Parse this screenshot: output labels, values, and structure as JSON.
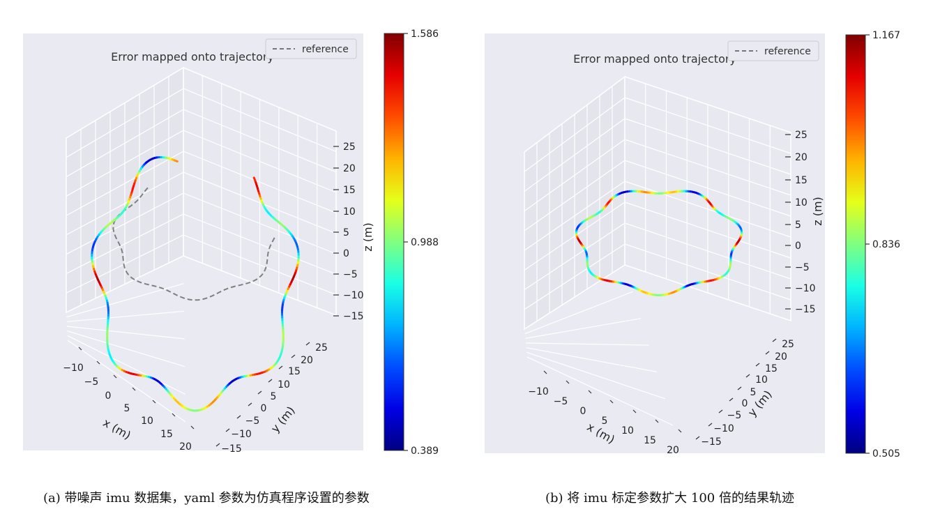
{
  "figures": [
    {
      "id": "a",
      "caption": "(a) 带噪声 imu 数据集，yaml 参数为仿真程序设置的参数",
      "chart_data": {
        "type": "line",
        "projection": "3d",
        "title": "Error mapped onto trajectory",
        "legend": {
          "entries": [
            "reference"
          ],
          "position": "top-right"
        },
        "xlabel": "x (m)",
        "ylabel": "y (m)",
        "zlabel": "z (m)",
        "x_ticks": [
          "−10",
          "−5",
          "0",
          "5",
          "10",
          "15",
          "20"
        ],
        "y_ticks": [
          "−15",
          "−10",
          "−5",
          "0",
          "5",
          "10",
          "15",
          "20",
          "25"
        ],
        "z_ticks": [
          "25",
          "20",
          "15",
          "10",
          "5",
          "0",
          "−5",
          "−10",
          "−15"
        ],
        "colorbar": {
          "colormap": "jet",
          "min": 0.389,
          "mid": 0.988,
          "max": 1.586,
          "labels": [
            "1.586",
            "0.988",
            "0.389"
          ]
        },
        "series": [
          {
            "name": "reference",
            "style": "dashed",
            "color": "#808080",
            "shape": "closed wavy loop"
          }
        ]
      }
    },
    {
      "id": "b",
      "caption": "(b) 将 imu 标定参数扩大 100 倍的结果轨迹",
      "chart_data": {
        "type": "line",
        "projection": "3d",
        "title": "Error mapped onto trajectory",
        "legend": {
          "entries": [
            "reference"
          ],
          "position": "top-right"
        },
        "xlabel": "x (m)",
        "ylabel": "y (m)",
        "zlabel": "z (m)",
        "x_ticks": [
          "−10",
          "−5",
          "0",
          "5",
          "10",
          "15",
          "20"
        ],
        "y_ticks": [
          "−15",
          "−10",
          "−5",
          "0",
          "5",
          "10",
          "15",
          "20",
          "25"
        ],
        "z_ticks": [
          "25",
          "20",
          "15",
          "10",
          "5",
          "0",
          "−5",
          "−10",
          "−15"
        ],
        "colorbar": {
          "colormap": "jet",
          "min": 0.505,
          "mid": 0.836,
          "max": 1.167,
          "labels": [
            "1.167",
            "0.836",
            "0.505"
          ]
        },
        "series": [
          {
            "name": "reference",
            "style": "dashed",
            "color": "#808080",
            "shape": "closed wavy loop"
          }
        ]
      }
    }
  ]
}
